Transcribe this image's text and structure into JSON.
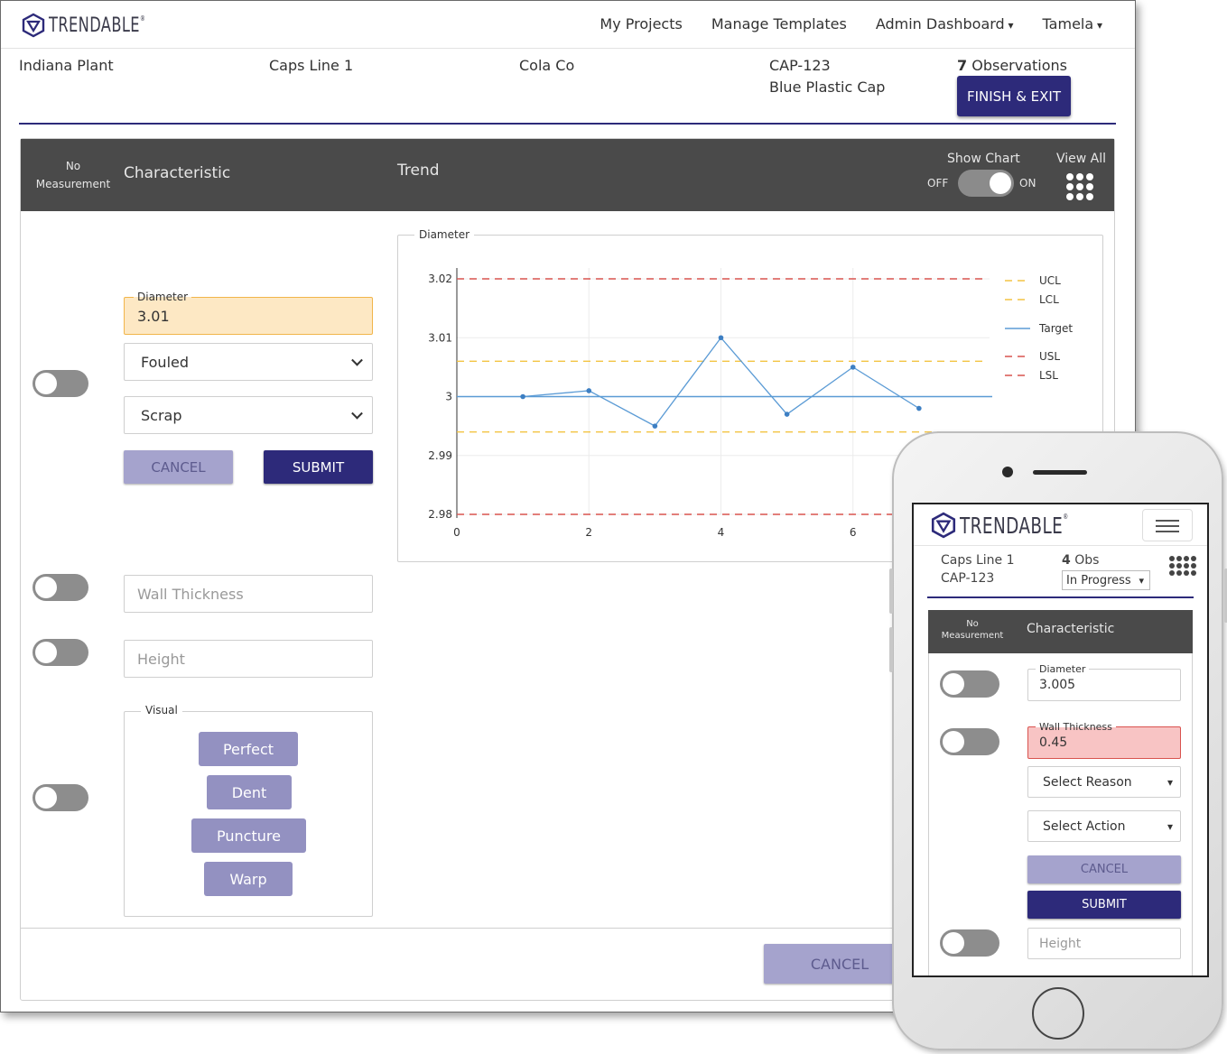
{
  "brand": {
    "name": "TRENDABLE",
    "reg": "®",
    "accent": "#2d2a7a"
  },
  "nav": {
    "my_projects": "My Projects",
    "manage_templates": "Manage Templates",
    "admin_dashboard": "Admin Dashboard",
    "user": "Tamela"
  },
  "job": {
    "plant": "Indiana Plant",
    "line": "Caps Line 1",
    "customer": "Cola Co",
    "part_number": "CAP-123",
    "part_name": "Blue Plastic Cap",
    "observations_count": "7",
    "observations_label": "Observations",
    "finish_label": "FINISH & EXIT"
  },
  "table_header": {
    "no_measurement_1": "No",
    "no_measurement_2": "Measurement",
    "characteristic": "Characteristic",
    "trend": "Trend",
    "show_chart": "Show Chart",
    "off": "OFF",
    "on": "ON",
    "view_all": "View All"
  },
  "diameter_row": {
    "label": "Diameter",
    "value": "3.01",
    "reason": "Fouled",
    "action": "Scrap",
    "cancel": "CANCEL",
    "submit": "SUBMIT"
  },
  "wall_thickness_placeholder": "Wall Thickness",
  "height_placeholder": "Height",
  "visual": {
    "label": "Visual",
    "options": [
      "Perfect",
      "Dent",
      "Puncture",
      "Warp"
    ]
  },
  "footer": {
    "cancel": "CANCEL"
  },
  "chart_data": {
    "type": "line",
    "title": "Diameter",
    "x": [
      1,
      2,
      3,
      4,
      5,
      6,
      7
    ],
    "y": [
      3.0,
      3.001,
      2.995,
      3.01,
      2.997,
      3.005,
      2.998
    ],
    "xlim": [
      0,
      8
    ],
    "ylim": [
      2.98,
      3.02
    ],
    "xticks": [
      "0",
      "2",
      "4",
      "6"
    ],
    "yticks": [
      "2.98",
      "2.99",
      "3",
      "3.01",
      "3.02"
    ],
    "limits": {
      "ucl": 3.006,
      "lcl": 2.994,
      "target": 3.0,
      "usl": 3.02,
      "lsl": 2.98
    },
    "legend": [
      "UCL",
      "LCL",
      "Target",
      "USL",
      "LSL"
    ],
    "colors": {
      "series": "#5b9bd5",
      "control": "#f3c443",
      "spec": "#d9534f",
      "target": "#5b9bd5"
    },
    "grid": true,
    "legend_position": "right"
  },
  "mobile": {
    "line": "Caps Line 1",
    "part_number": "CAP-123",
    "obs_count": "4",
    "obs_label": "Obs",
    "status": "In Progress",
    "no_measurement_1": "No",
    "no_measurement_2": "Measurement",
    "characteristic": "Characteristic",
    "diameter_label": "Diameter",
    "diameter_value": "3.005",
    "wall_label": "Wall Thickness",
    "wall_value": "0.45",
    "select_reason": "Select Reason",
    "select_action": "Select Action",
    "cancel": "CANCEL",
    "submit": "SUBMIT",
    "height_placeholder": "Height"
  }
}
